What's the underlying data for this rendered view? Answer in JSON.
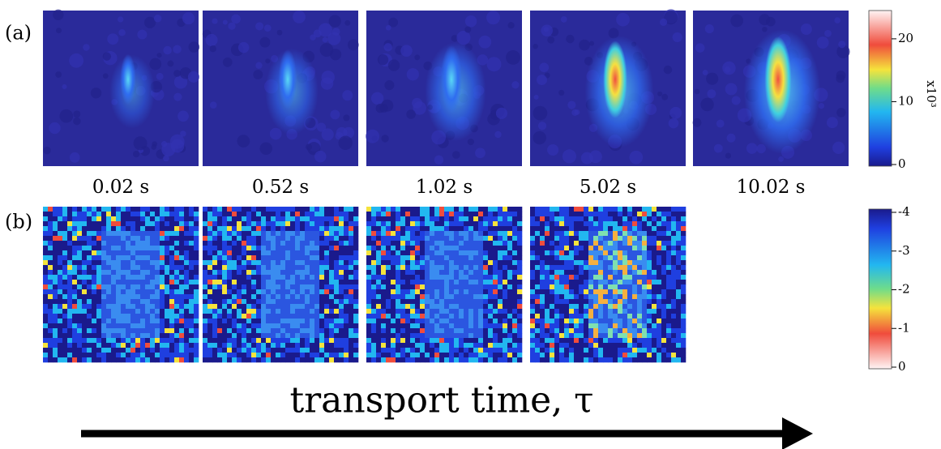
{
  "panels": {
    "a": {
      "label": "(a)",
      "times": [
        "0.02 s",
        "0.52 s",
        "1.02 s",
        "5.02 s",
        "10.02 s"
      ]
    },
    "b": {
      "label": "(b)"
    }
  },
  "colorbar_a": {
    "range": [
      0,
      24.5
    ],
    "ticks": [
      0,
      10,
      20
    ],
    "unit_label": "x10³"
  },
  "colorbar_b": {
    "range": [
      -4,
      0
    ],
    "ticks": [
      0,
      -1,
      -2,
      -3,
      -4
    ]
  },
  "axis_label": "transport time, τ"
}
